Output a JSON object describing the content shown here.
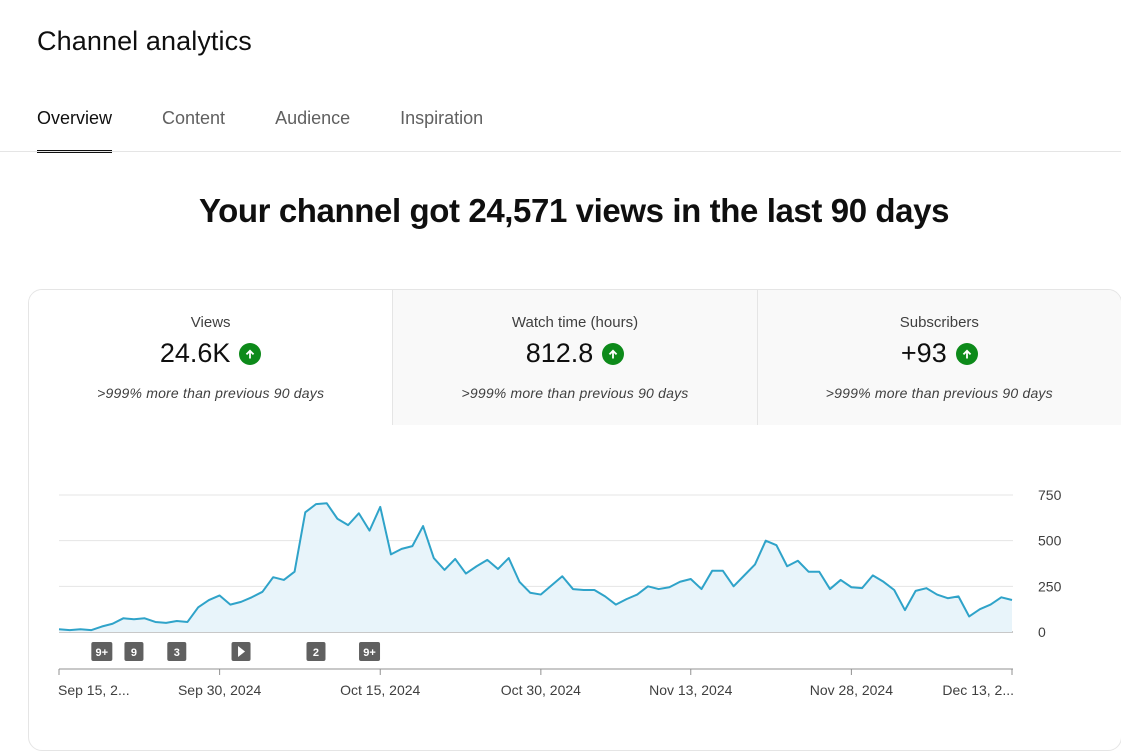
{
  "page": {
    "title": "Channel analytics"
  },
  "tabs": [
    {
      "label": "Overview",
      "active": true
    },
    {
      "label": "Content",
      "active": false
    },
    {
      "label": "Audience",
      "active": false
    },
    {
      "label": "Inspiration",
      "active": false
    }
  ],
  "headline": "Your channel got 24,571 views in the last 90 days",
  "metrics": [
    {
      "label": "Views",
      "value": "24.6K",
      "change": ">999% more than previous 90 days",
      "trend_icon": "arrow-up-icon",
      "selected": true
    },
    {
      "label": "Watch time (hours)",
      "value": "812.8",
      "change": ">999% more than previous 90 days",
      "trend_icon": "arrow-up-icon",
      "selected": false
    },
    {
      "label": "Subscribers",
      "value": "+93",
      "change": ">999% more than previous 90 days",
      "trend_icon": "arrow-up-icon",
      "selected": false
    }
  ],
  "colors": {
    "line": "#2fa3c9",
    "area_fill": "#e8f4fa",
    "trend_up": "#0d8a1a",
    "marker_bg": "#606060"
  },
  "chart_data": {
    "type": "area",
    "metric": "Views",
    "ylim": [
      0,
      750
    ],
    "yticks": [
      "750",
      "500",
      "250",
      "0"
    ],
    "ytick_values": [
      750,
      500,
      250,
      0
    ],
    "xticks": [
      "Sep 15, 2...",
      "Sep 30, 2024",
      "Oct 15, 2024",
      "Oct 30, 2024",
      "Nov 13, 2024",
      "Nov 28, 2024",
      "Dec 13, 2..."
    ],
    "xtick_days": [
      0,
      15,
      30,
      45,
      59,
      74,
      89
    ],
    "series": [
      {
        "values": [
          15,
          10,
          15,
          10,
          30,
          45,
          75,
          70,
          75,
          55,
          50,
          60,
          55,
          135,
          175,
          200,
          150,
          165,
          190,
          220,
          300,
          285,
          330,
          655,
          700,
          705,
          620,
          585,
          650,
          555,
          685,
          425,
          455,
          470,
          580,
          405,
          340,
          400,
          320,
          360,
          395,
          345,
          405,
          275,
          215,
          205,
          255,
          305,
          235,
          230,
          230,
          195,
          150,
          180,
          205,
          250,
          235,
          245,
          275,
          290,
          235,
          335,
          335,
          250,
          310,
          370,
          500,
          475,
          360,
          390,
          330,
          330,
          235,
          285,
          245,
          240,
          310,
          275,
          230,
          120,
          225,
          240,
          205,
          185,
          195,
          85,
          125,
          150,
          190,
          175
        ]
      }
    ],
    "markers": [
      {
        "day": 4,
        "label": "9+"
      },
      {
        "day": 7,
        "label": "9"
      },
      {
        "day": 11,
        "label": "3"
      },
      {
        "day": 17,
        "label": "play"
      },
      {
        "day": 24,
        "label": "2"
      },
      {
        "day": 29,
        "label": "9+"
      }
    ]
  }
}
